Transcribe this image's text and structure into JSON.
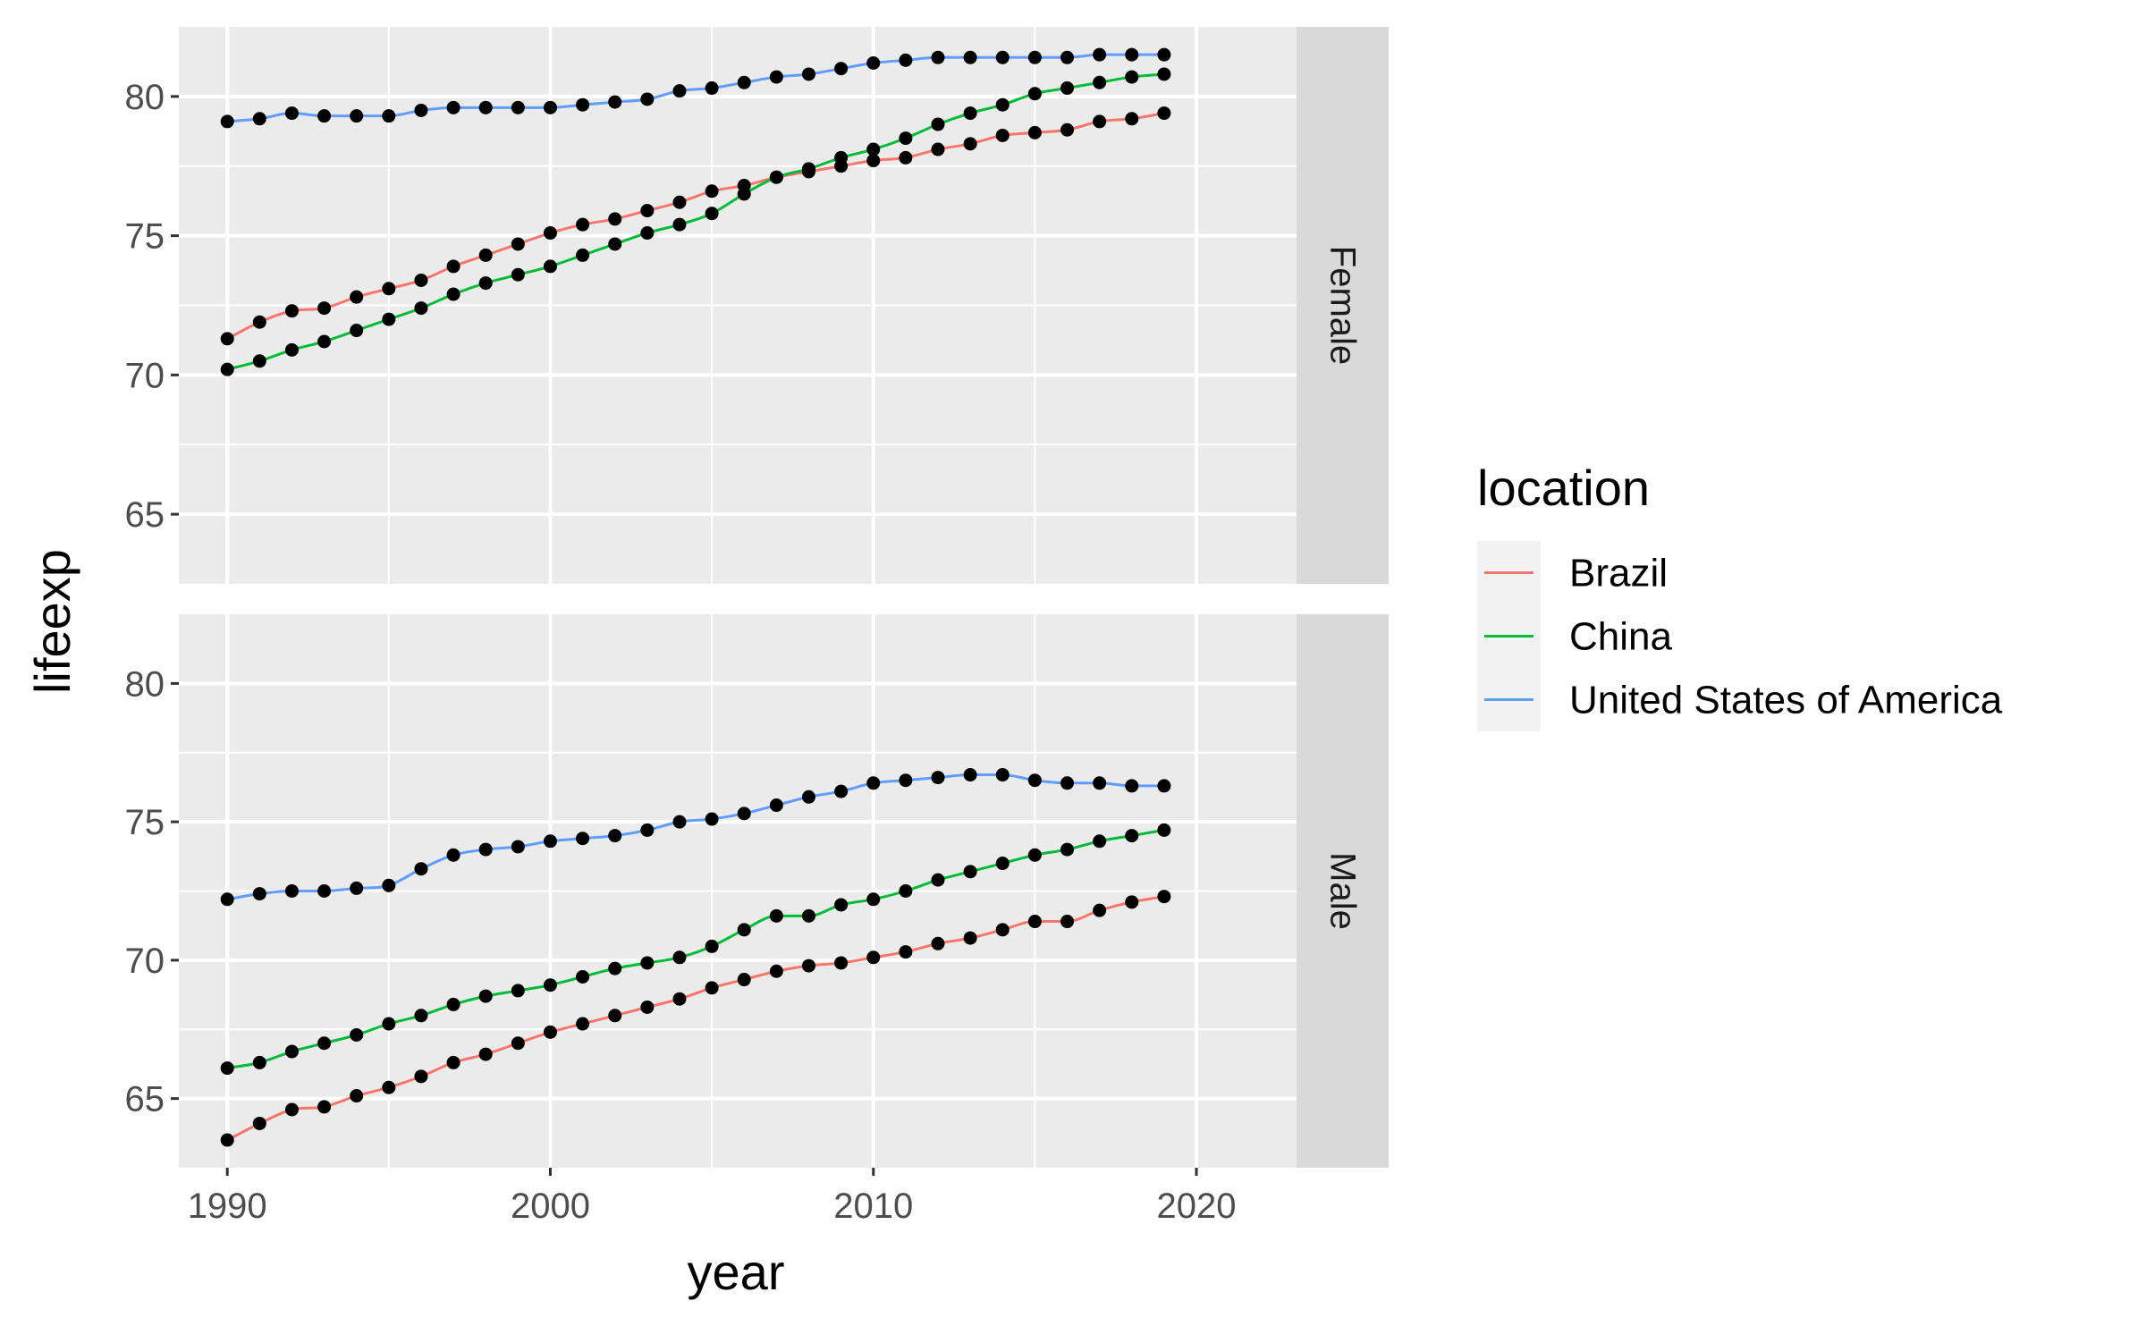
{
  "chart_data": {
    "type": "line",
    "xlabel": "year",
    "ylabel": "lifeexp",
    "xlim": [
      1988.5,
      2023.1
    ],
    "ylim": [
      62.5,
      82.5
    ],
    "x_ticks": [
      1990,
      2000,
      2010,
      2020
    ],
    "y_ticks": [
      65,
      70,
      75,
      80
    ],
    "grid": true,
    "points_shown": true,
    "legend": {
      "title": "location",
      "placement": "right",
      "entries": [
        {
          "label": "Brazil",
          "color": "#F8766D"
        },
        {
          "label": "China",
          "color": "#00BA38"
        },
        {
          "label": "United States of America",
          "color": "#619CFF"
        }
      ]
    },
    "facets": [
      {
        "strip": "Female",
        "x": [
          1990,
          1991,
          1992,
          1993,
          1994,
          1995,
          1996,
          1997,
          1998,
          1999,
          2000,
          2001,
          2002,
          2003,
          2004,
          2005,
          2006,
          2007,
          2008,
          2009,
          2010,
          2011,
          2012,
          2013,
          2014,
          2015,
          2016,
          2017,
          2018,
          2019
        ],
        "series": [
          {
            "name": "Brazil",
            "color": "#F8766D",
            "values": [
              71.3,
              71.9,
              72.3,
              72.4,
              72.8,
              73.1,
              73.4,
              73.9,
              74.3,
              74.7,
              75.1,
              75.4,
              75.6,
              75.9,
              76.2,
              76.6,
              76.8,
              77.1,
              77.3,
              77.5,
              77.7,
              77.8,
              78.1,
              78.3,
              78.6,
              78.7,
              78.8,
              79.1,
              79.2,
              79.4
            ]
          },
          {
            "name": "China",
            "color": "#00BA38",
            "values": [
              70.2,
              70.5,
              70.9,
              71.2,
              71.6,
              72.0,
              72.4,
              72.9,
              73.3,
              73.6,
              73.9,
              74.3,
              74.7,
              75.1,
              75.4,
              75.8,
              76.5,
              77.1,
              77.4,
              77.8,
              78.1,
              78.5,
              79.0,
              79.4,
              79.7,
              80.1,
              80.3,
              80.5,
              80.7,
              80.8
            ]
          },
          {
            "name": "United States of America",
            "color": "#619CFF",
            "values": [
              79.1,
              79.2,
              79.4,
              79.3,
              79.3,
              79.3,
              79.5,
              79.6,
              79.6,
              79.6,
              79.6,
              79.7,
              79.8,
              79.9,
              80.2,
              80.3,
              80.5,
              80.7,
              80.8,
              81.0,
              81.2,
              81.3,
              81.4,
              81.4,
              81.4,
              81.4,
              81.4,
              81.5,
              81.5,
              81.5
            ]
          }
        ]
      },
      {
        "strip": "Male",
        "x": [
          1990,
          1991,
          1992,
          1993,
          1994,
          1995,
          1996,
          1997,
          1998,
          1999,
          2000,
          2001,
          2002,
          2003,
          2004,
          2005,
          2006,
          2007,
          2008,
          2009,
          2010,
          2011,
          2012,
          2013,
          2014,
          2015,
          2016,
          2017,
          2018,
          2019
        ],
        "series": [
          {
            "name": "Brazil",
            "color": "#F8766D",
            "values": [
              63.5,
              64.1,
              64.6,
              64.7,
              65.1,
              65.4,
              65.8,
              66.3,
              66.6,
              67.0,
              67.4,
              67.7,
              68.0,
              68.3,
              68.6,
              69.0,
              69.3,
              69.6,
              69.8,
              69.9,
              70.1,
              70.3,
              70.6,
              70.8,
              71.1,
              71.4,
              71.4,
              71.8,
              72.1,
              72.3
            ]
          },
          {
            "name": "China",
            "color": "#00BA38",
            "values": [
              66.1,
              66.3,
              66.7,
              67.0,
              67.3,
              67.7,
              68.0,
              68.4,
              68.7,
              68.9,
              69.1,
              69.4,
              69.7,
              69.9,
              70.1,
              70.5,
              71.1,
              71.6,
              71.6,
              72.0,
              72.2,
              72.5,
              72.9,
              73.2,
              73.5,
              73.8,
              74.0,
              74.3,
              74.5,
              74.7
            ]
          },
          {
            "name": "United States of America",
            "color": "#619CFF",
            "values": [
              72.2,
              72.4,
              72.5,
              72.5,
              72.6,
              72.7,
              73.3,
              73.8,
              74.0,
              74.1,
              74.3,
              74.4,
              74.5,
              74.7,
              75.0,
              75.1,
              75.3,
              75.6,
              75.9,
              76.1,
              76.4,
              76.5,
              76.6,
              76.7,
              76.7,
              76.5,
              76.4,
              76.4,
              76.3,
              76.3
            ]
          }
        ]
      }
    ]
  }
}
